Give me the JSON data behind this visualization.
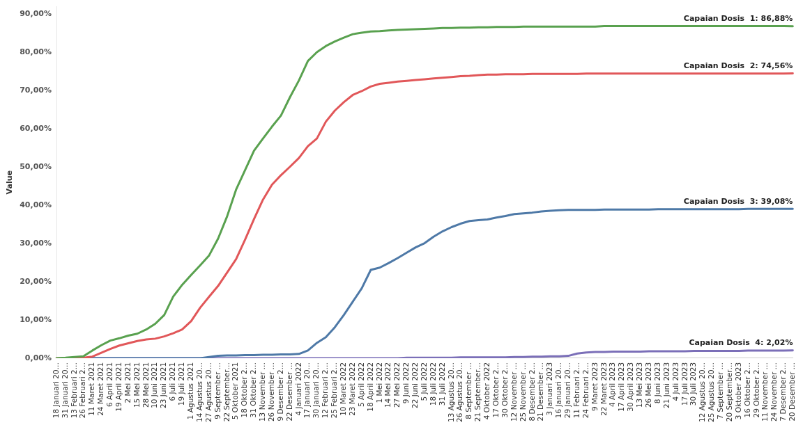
{
  "chart_data": {
    "type": "line",
    "ylabel": "Value",
    "categories": [
      "18 Januari 20…",
      "31 Januari 20…",
      "13 Februari 2…",
      "26 Februari 2…",
      "11 Maret 2021",
      "24 Maret 2021",
      "6 April 2021",
      "19 April 2021",
      "2 Mei 2021",
      "15 Mei 2021",
      "28 Mei 2021",
      "10 Juni 2021",
      "23 Juni 2021",
      "6 Juli 2021",
      "19 Juli 2021",
      "1 Agustus 2021",
      "14 Agustus 20…",
      "27 Agustus 20…",
      "9 September …",
      "22 September…",
      "5 Oktober 2021",
      "18 Oktober 2…",
      "31 Oktober 2…",
      "13 November …",
      "26 November …",
      "9 Desember 2…",
      "22 Desember …",
      "4 Januari 2022",
      "17 Januari 20…",
      "30 Januari 20…",
      "12 Februari 2…",
      "25 Februari 2…",
      "10 Maret 2022",
      "23 Maret 2022",
      "5 April 2022",
      "18 April 2022",
      "1 Mei 2022",
      "14 Mei 2022",
      "27 Mei 2022",
      "9 Juni 2022",
      "22 Juni 2022",
      "5 Juli 2022",
      "18 Juli 2022",
      "31 Juli 2022",
      "13 Agustus 20…",
      "26 Agustus 20…",
      "8 September …",
      "21 September…",
      "4 Oktober 2022",
      "17 Oktober 2…",
      "30 Oktober 2…",
      "12 November …",
      "25 November …",
      "8 Desember 2…",
      "21 Desember …",
      "3 Januari 2023",
      "16 Januari 20…",
      "29 Januari 20…",
      "11 Februari 2…",
      "24 Februari 2…",
      "9 Maret 2023",
      "22 Maret 2023",
      "4 April 2023",
      "17 April 2023",
      "30 April 2023",
      "13 Mei 2023",
      "26 Mei 2023",
      "8 Juni 2023",
      "21 Juni 2023",
      "4 Juli 2023",
      "17 Juli 2023",
      "30 Juli 2023",
      "12 Agustus 20…",
      "25 Agustus 20…",
      "7 September …",
      "20 September…",
      "3 Oktober 2023",
      "16 Oktober 2…",
      "29 Oktober 2…",
      "11 November …",
      "24 November …",
      "7 Desember 2…",
      "20 Desember …"
    ],
    "series": [
      {
        "color": "#59a14f",
        "values": [
          0,
          0.1,
          0.3,
          0.5,
          2.0,
          3.4,
          4.6,
          5.2,
          5.9,
          6.4,
          7.5,
          9.0,
          11.3,
          16.1,
          19.2,
          21.8,
          24.3,
          26.9,
          31.3,
          37.1,
          44.1,
          49.2,
          54.3,
          57.5,
          60.6,
          63.5,
          68.3,
          72.7,
          77.8,
          80.1,
          81.7,
          82.9,
          83.9,
          84.8,
          85.2,
          85.5,
          85.6,
          85.8,
          85.9,
          86.0,
          86.1,
          86.2,
          86.3,
          86.4,
          86.4,
          86.5,
          86.5,
          86.6,
          86.6,
          86.7,
          86.7,
          86.7,
          86.8,
          86.8,
          86.8,
          86.8,
          86.8,
          86.8,
          86.8,
          86.8,
          86.8,
          86.9,
          86.9,
          86.9,
          86.9,
          86.9,
          86.9,
          86.9,
          86.9,
          86.9,
          86.9,
          86.9,
          86.9,
          86.9,
          86.9,
          86.9,
          86.9,
          86.9,
          86.9,
          86.9,
          86.9,
          86.9,
          86.88
        ]
      },
      {
        "color": "#e15759",
        "values": [
          0,
          0,
          0,
          0.1,
          0.4,
          1.4,
          2.4,
          3.3,
          3.9,
          4.5,
          4.9,
          5.1,
          5.7,
          6.5,
          7.5,
          9.7,
          13.2,
          16.1,
          18.9,
          22.4,
          25.9,
          31.0,
          36.4,
          41.5,
          45.4,
          47.9,
          50.1,
          52.4,
          55.5,
          57.5,
          61.9,
          64.8,
          67.0,
          68.9,
          69.9,
          71.1,
          71.8,
          72.1,
          72.4,
          72.6,
          72.8,
          73.0,
          73.2,
          73.4,
          73.6,
          73.8,
          73.9,
          74.1,
          74.2,
          74.2,
          74.3,
          74.3,
          74.3,
          74.4,
          74.4,
          74.4,
          74.4,
          74.4,
          74.4,
          74.5,
          74.5,
          74.5,
          74.5,
          74.5,
          74.5,
          74.5,
          74.5,
          74.5,
          74.5,
          74.5,
          74.5,
          74.5,
          74.5,
          74.5,
          74.5,
          74.5,
          74.5,
          74.5,
          74.5,
          74.5,
          74.5,
          74.5,
          74.56
        ]
      },
      {
        "color": "#4e79a7",
        "values": [
          null,
          null,
          null,
          0,
          0,
          0,
          0,
          0,
          0,
          0,
          0,
          0,
          0,
          0,
          0,
          0,
          0,
          0.3,
          0.6,
          0.7,
          0.7,
          0.8,
          0.8,
          0.9,
          0.9,
          1.0,
          1.0,
          1.1,
          2.0,
          4.0,
          5.5,
          8.1,
          11.3,
          14.8,
          18.3,
          23.1,
          23.7,
          24.9,
          26.2,
          27.6,
          29.0,
          30.1,
          31.8,
          33.2,
          34.3,
          35.2,
          35.9,
          36.1,
          36.3,
          36.8,
          37.2,
          37.7,
          37.9,
          38.1,
          38.4,
          38.6,
          38.7,
          38.8,
          38.8,
          38.8,
          38.8,
          38.9,
          38.9,
          38.9,
          38.9,
          38.9,
          38.9,
          39.0,
          39.0,
          39.0,
          39.0,
          39.0,
          39.0,
          39.0,
          39.0,
          39.0,
          39.0,
          39.1,
          39.1,
          39.1,
          39.1,
          39.1,
          39.08
        ]
      },
      {
        "color": "#7b6fb8",
        "values": [
          null,
          null,
          null,
          0,
          0,
          0,
          0,
          0,
          0,
          0,
          0,
          0,
          0,
          0,
          0,
          0,
          0,
          0,
          0,
          0,
          0,
          0,
          0,
          0,
          0,
          0,
          0,
          0,
          0,
          0,
          0,
          0,
          0,
          0,
          0,
          0,
          0,
          0,
          0,
          0.1,
          0.1,
          0.1,
          0.1,
          0.1,
          0.1,
          0.2,
          0.2,
          0.2,
          0.2,
          0.2,
          0.2,
          0.3,
          0.3,
          0.4,
          0.4,
          0.5,
          0.5,
          0.6,
          1.2,
          1.5,
          1.6,
          1.6,
          1.7,
          1.7,
          1.7,
          1.7,
          1.8,
          1.8,
          1.8,
          1.8,
          1.8,
          1.9,
          1.9,
          1.9,
          1.9,
          1.9,
          1.9,
          2.0,
          2.0,
          2.0,
          2.0,
          2.0,
          2.02
        ]
      }
    ],
    "ylim": [
      0,
      92
    ],
    "yticks": [
      {
        "value": 0,
        "label": "0,00%"
      },
      {
        "value": 10,
        "label": "10,00%"
      },
      {
        "value": 20,
        "label": "20,00%"
      },
      {
        "value": 30,
        "label": "30,00%"
      },
      {
        "value": 40,
        "label": "40,00%"
      },
      {
        "value": 50,
        "label": "50,00%"
      },
      {
        "value": 60,
        "label": "60,00%"
      },
      {
        "value": 70,
        "label": "70,00%"
      },
      {
        "value": 80,
        "label": "80,00%"
      },
      {
        "value": 90,
        "label": "90,00%"
      }
    ],
    "annotations": [
      {
        "text": "Capaian Dosis  1: 86,88%",
        "x": "20 Desember …",
        "y": 86.88
      },
      {
        "text": "Capaian Dosis  2: 74,56%",
        "x": "20 Desember …",
        "y": 74.56
      },
      {
        "text": "Capaian Dosis  3: 39,08%",
        "x": "20 Desember …",
        "y": 39.08
      },
      {
        "text": "Capaian Dosis  4: 2,02%",
        "x": "20 Desember …",
        "y": 2.02
      }
    ],
    "grid": false,
    "legend": false,
    "marker": "none",
    "line_style": "solid"
  }
}
